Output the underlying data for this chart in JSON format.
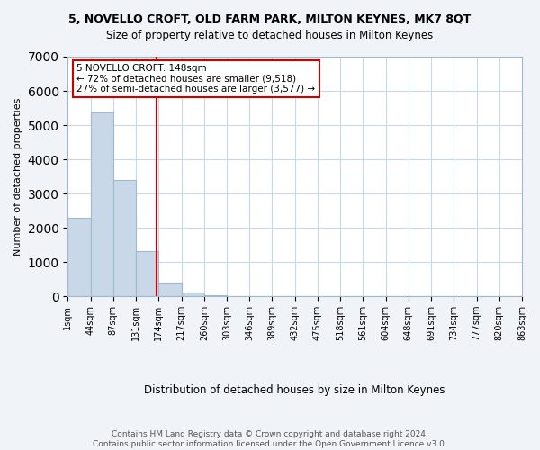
{
  "title": "5, NOVELLO CROFT, OLD FARM PARK, MILTON KEYNES, MK7 8QT",
  "subtitle": "Size of property relative to detached houses in Milton Keynes",
  "xlabel": "Distribution of detached houses by size in Milton Keynes",
  "ylabel": "Number of detached properties",
  "bin_labels": [
    "1sqm",
    "44sqm",
    "87sqm",
    "131sqm",
    "174sqm",
    "217sqm",
    "260sqm",
    "303sqm",
    "346sqm",
    "389sqm",
    "432sqm",
    "475sqm",
    "518sqm",
    "561sqm",
    "604sqm",
    "648sqm",
    "691sqm",
    "734sqm",
    "777sqm",
    "820sqm",
    "863sqm"
  ],
  "bar_values": [
    2280,
    5380,
    3410,
    1310,
    410,
    120,
    40,
    10,
    5,
    3,
    2,
    1,
    1,
    0,
    0,
    0,
    0,
    0,
    0,
    0
  ],
  "bar_color": "#c8d8e8",
  "bar_edge_color": "#a0b8d0",
  "vline_x": 3.4,
  "vline_color": "#cc0000",
  "annotation_text": "5 NOVELLO CROFT: 148sqm\n← 72% of detached houses are smaller (9,518)\n27% of semi-detached houses are larger (3,577) →",
  "annotation_box_color": "#ffffff",
  "annotation_box_edge_color": "#cc0000",
  "ylim": [
    0,
    7000
  ],
  "footer": "Contains HM Land Registry data © Crown copyright and database right 2024.\nContains public sector information licensed under the Open Government Licence v3.0.",
  "background_color": "#f0f4f8",
  "plot_background_color": "#ffffff",
  "grid_color": "#c8d8e8"
}
